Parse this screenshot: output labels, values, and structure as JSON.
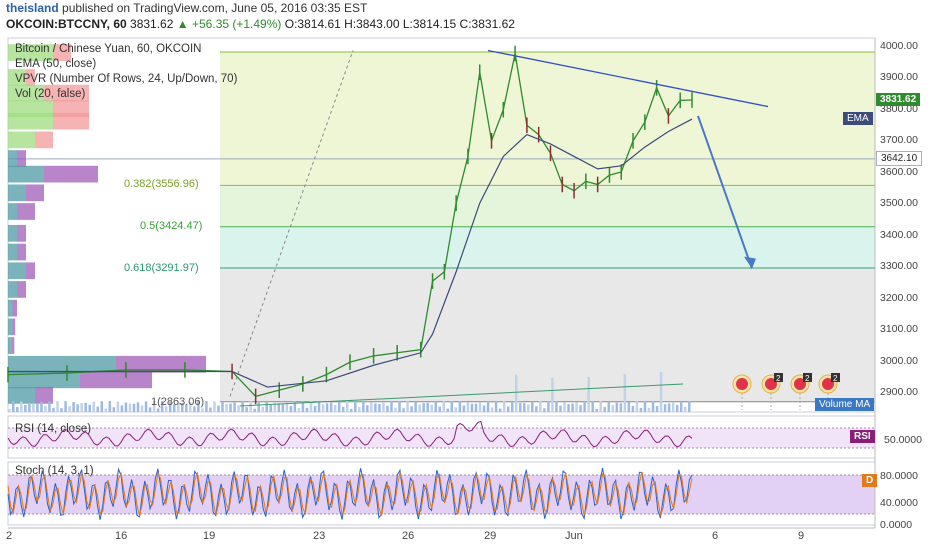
{
  "header": {
    "user": "theisland",
    "published": "published on TradingView.com, June 05, 2016 03:35 EST",
    "symbol": "OKCOIN:BTCCNY, 60",
    "last": "3831.62",
    "arrow": "▲",
    "change": "+56.35 (+1.49%)",
    "ohlc": "O:3814.61 H:3843.00 L:3814.15 C:3831.62"
  },
  "legend": {
    "title": "Bitcoin / Chinese Yuan, 60, OKCOIN",
    "ema": "EMA (50, close)",
    "vpvr": "VPVR (Number Of Rows, 24, Up/Down, 70)",
    "vol": "Vol (20, false)"
  },
  "fib_labels": {
    "f0382": "0.382(3556.96)",
    "f05": "0.5(3424.47)",
    "f0618": "0.618(3291.97)",
    "f1": "1(2863.06)"
  },
  "price_axis": [
    "4000.00",
    "3900.00",
    "3800.00",
    "3700.00",
    "3600.00",
    "3500.00",
    "3400.00",
    "3300.00",
    "3200.00",
    "3100.00",
    "3000.00",
    "2900.00"
  ],
  "price_tags": {
    "last": "3831.62",
    "level": "3642.10",
    "ema": "EMA",
    "volma": "Volume MA"
  },
  "rsi": {
    "label": "RSI (14, close)",
    "tag": "RSI",
    "axis": "50.0000"
  },
  "stoch": {
    "label": "Stoch (14, 3, 1)",
    "tag": "D",
    "axis": [
      "80.0000",
      "40.0000",
      "0.0000"
    ]
  },
  "dates": [
    "2",
    "16",
    "19",
    "23",
    "26",
    "29",
    "Jun",
    "6",
    "9"
  ],
  "event_badges": [
    "",
    "2",
    "2",
    "2"
  ],
  "colors": {
    "bull": "#2e8b2e",
    "bear": "#8b2e2e",
    "ema": "#3b4b7a",
    "trendline": "#3050c0",
    "fib_zone_upper": "#eef6d6",
    "fib_zone_lower": "#d8f4ec",
    "fib_zone_base": "#e8e8e8",
    "rsi_band": "#f1e4f8",
    "stoch_band": "#e3d0f5"
  },
  "chart_data": [
    {
      "type": "line",
      "title": "Bitcoin / Chinese Yuan, 60, OKCOIN",
      "ylim": [
        2830,
        4030
      ],
      "x_ticks": [
        "2",
        "16",
        "19",
        "23",
        "26",
        "29",
        "Jun",
        "6",
        "9"
      ],
      "price_series": [
        {
          "t": 0,
          "v": 2950
        },
        {
          "t": 5,
          "v": 2955
        },
        {
          "t": 10,
          "v": 2965
        },
        {
          "t": 15,
          "v": 2965
        },
        {
          "t": 19,
          "v": 2960
        },
        {
          "t": 21,
          "v": 2880
        },
        {
          "t": 23,
          "v": 2900
        },
        {
          "t": 25,
          "v": 2920
        },
        {
          "t": 27,
          "v": 2950
        },
        {
          "t": 29,
          "v": 2990
        },
        {
          "t": 31,
          "v": 3010
        },
        {
          "t": 33,
          "v": 3020
        },
        {
          "t": 35,
          "v": 3030
        },
        {
          "t": 36,
          "v": 3250
        },
        {
          "t": 37,
          "v": 3280
        },
        {
          "t": 38,
          "v": 3500
        },
        {
          "t": 39,
          "v": 3650
        },
        {
          "t": 40,
          "v": 3920
        },
        {
          "t": 41,
          "v": 3700
        },
        {
          "t": 42,
          "v": 3800
        },
        {
          "t": 43,
          "v": 3980
        },
        {
          "t": 44,
          "v": 3750
        },
        {
          "t": 45,
          "v": 3720
        },
        {
          "t": 46,
          "v": 3660
        },
        {
          "t": 47,
          "v": 3560
        },
        {
          "t": 48,
          "v": 3540
        },
        {
          "t": 49,
          "v": 3570
        },
        {
          "t": 50,
          "v": 3560
        },
        {
          "t": 51,
          "v": 3590
        },
        {
          "t": 52,
          "v": 3600
        },
        {
          "t": 53,
          "v": 3700
        },
        {
          "t": 54,
          "v": 3760
        },
        {
          "t": 55,
          "v": 3870
        },
        {
          "t": 56,
          "v": 3780
        },
        {
          "t": 57,
          "v": 3830
        },
        {
          "t": 58,
          "v": 3831
        }
      ],
      "ema_series": [
        {
          "t": 0,
          "v": 2960
        },
        {
          "t": 19,
          "v": 2960
        },
        {
          "t": 22,
          "v": 2910
        },
        {
          "t": 27,
          "v": 2930
        },
        {
          "t": 31,
          "v": 2980
        },
        {
          "t": 35,
          "v": 3020
        },
        {
          "t": 36,
          "v": 3080
        },
        {
          "t": 38,
          "v": 3280
        },
        {
          "t": 40,
          "v": 3500
        },
        {
          "t": 42,
          "v": 3650
        },
        {
          "t": 44,
          "v": 3720
        },
        {
          "t": 46,
          "v": 3690
        },
        {
          "t": 48,
          "v": 3650
        },
        {
          "t": 50,
          "v": 3610
        },
        {
          "t": 52,
          "v": 3620
        },
        {
          "t": 54,
          "v": 3680
        },
        {
          "t": 56,
          "v": 3730
        },
        {
          "t": 58,
          "v": 3770
        }
      ],
      "fib_levels": [
        {
          "ratio": "0.382",
          "price": 3556.96
        },
        {
          "ratio": "0.5",
          "price": 3424.47
        },
        {
          "ratio": "0.618",
          "price": 3291.97
        },
        {
          "ratio": "1",
          "price": 2863.06
        }
      ],
      "trendline": {
        "from": 3990,
        "to": 3810
      },
      "projection_arrow": {
        "from": 3780,
        "to": 3290
      }
    },
    {
      "type": "line",
      "title": "RSI (14, close)",
      "ylim": [
        20,
        80
      ],
      "bands": [
        30,
        70
      ]
    },
    {
      "type": "line",
      "title": "Stoch (14, 3, 1)",
      "ylim": [
        0,
        100
      ],
      "bands": [
        20,
        80
      ]
    }
  ]
}
